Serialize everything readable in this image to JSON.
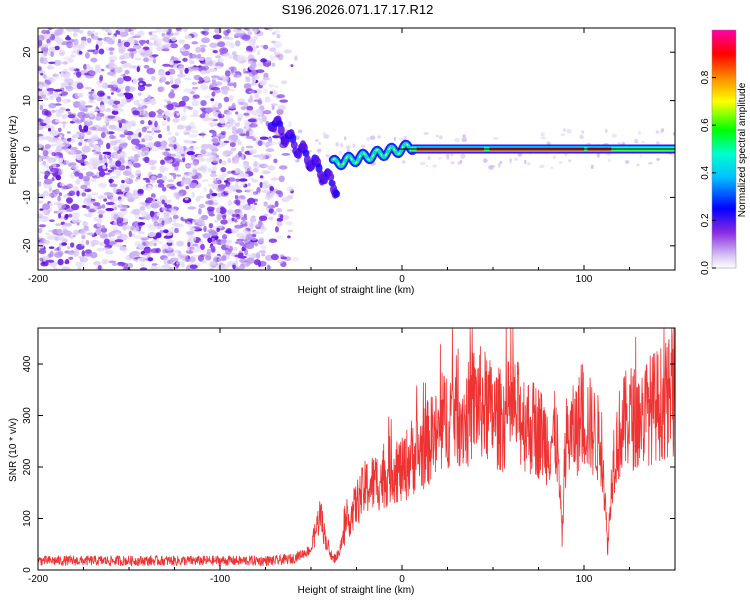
{
  "title": "S196.2026.071.17.17.R12",
  "chart_data": [
    {
      "type": "heatmap",
      "xlabel": "Height of straight line (km)",
      "ylabel": "Frequency (Hz)",
      "xlim": [
        -200,
        150
      ],
      "ylim": [
        -25,
        25
      ],
      "xticks": [
        -200,
        -100,
        0,
        100
      ],
      "yticks": [
        -20,
        -10,
        0,
        10,
        20
      ],
      "description_regions": {
        "noise_region_x": [
          -200,
          -62
        ],
        "tone_line_freq": 0
      },
      "colorbar": {
        "label": "Normalized spectral amplitude",
        "range": [
          0,
          1
        ],
        "ticks": [
          0.0,
          0.2,
          0.4,
          0.6,
          0.8
        ]
      }
    },
    {
      "type": "line",
      "series_name": "SNR",
      "color": "#ee3333",
      "xlabel": "Height of straight line (km)",
      "ylabel": "SNR (10 * v/v)",
      "xlim": [
        -200,
        150
      ],
      "ylim": [
        0,
        470
      ],
      "xticks": [
        -200,
        -100,
        0,
        100
      ],
      "yticks": [
        0,
        100,
        200,
        300,
        400
      ],
      "x": [
        -200,
        -150,
        -100,
        -70,
        -60,
        -50,
        -45,
        -42,
        -38,
        -35,
        -30,
        -25,
        -20,
        -15,
        -10,
        -5,
        0,
        5,
        10,
        15,
        20,
        25,
        30,
        35,
        40,
        45,
        50,
        55,
        60,
        65,
        70,
        75,
        80,
        85,
        88,
        90,
        95,
        100,
        105,
        110,
        113,
        116,
        120,
        125,
        130,
        135,
        140,
        145,
        150
      ],
      "y": [
        18,
        18,
        18,
        18,
        22,
        40,
        110,
        60,
        20,
        30,
        90,
        130,
        160,
        170,
        180,
        200,
        190,
        220,
        230,
        250,
        260,
        300,
        310,
        290,
        330,
        320,
        300,
        290,
        310,
        300,
        280,
        270,
        250,
        260,
        60,
        250,
        270,
        300,
        270,
        240,
        40,
        220,
        270,
        300,
        290,
        310,
        320,
        330,
        340
      ]
    }
  ]
}
